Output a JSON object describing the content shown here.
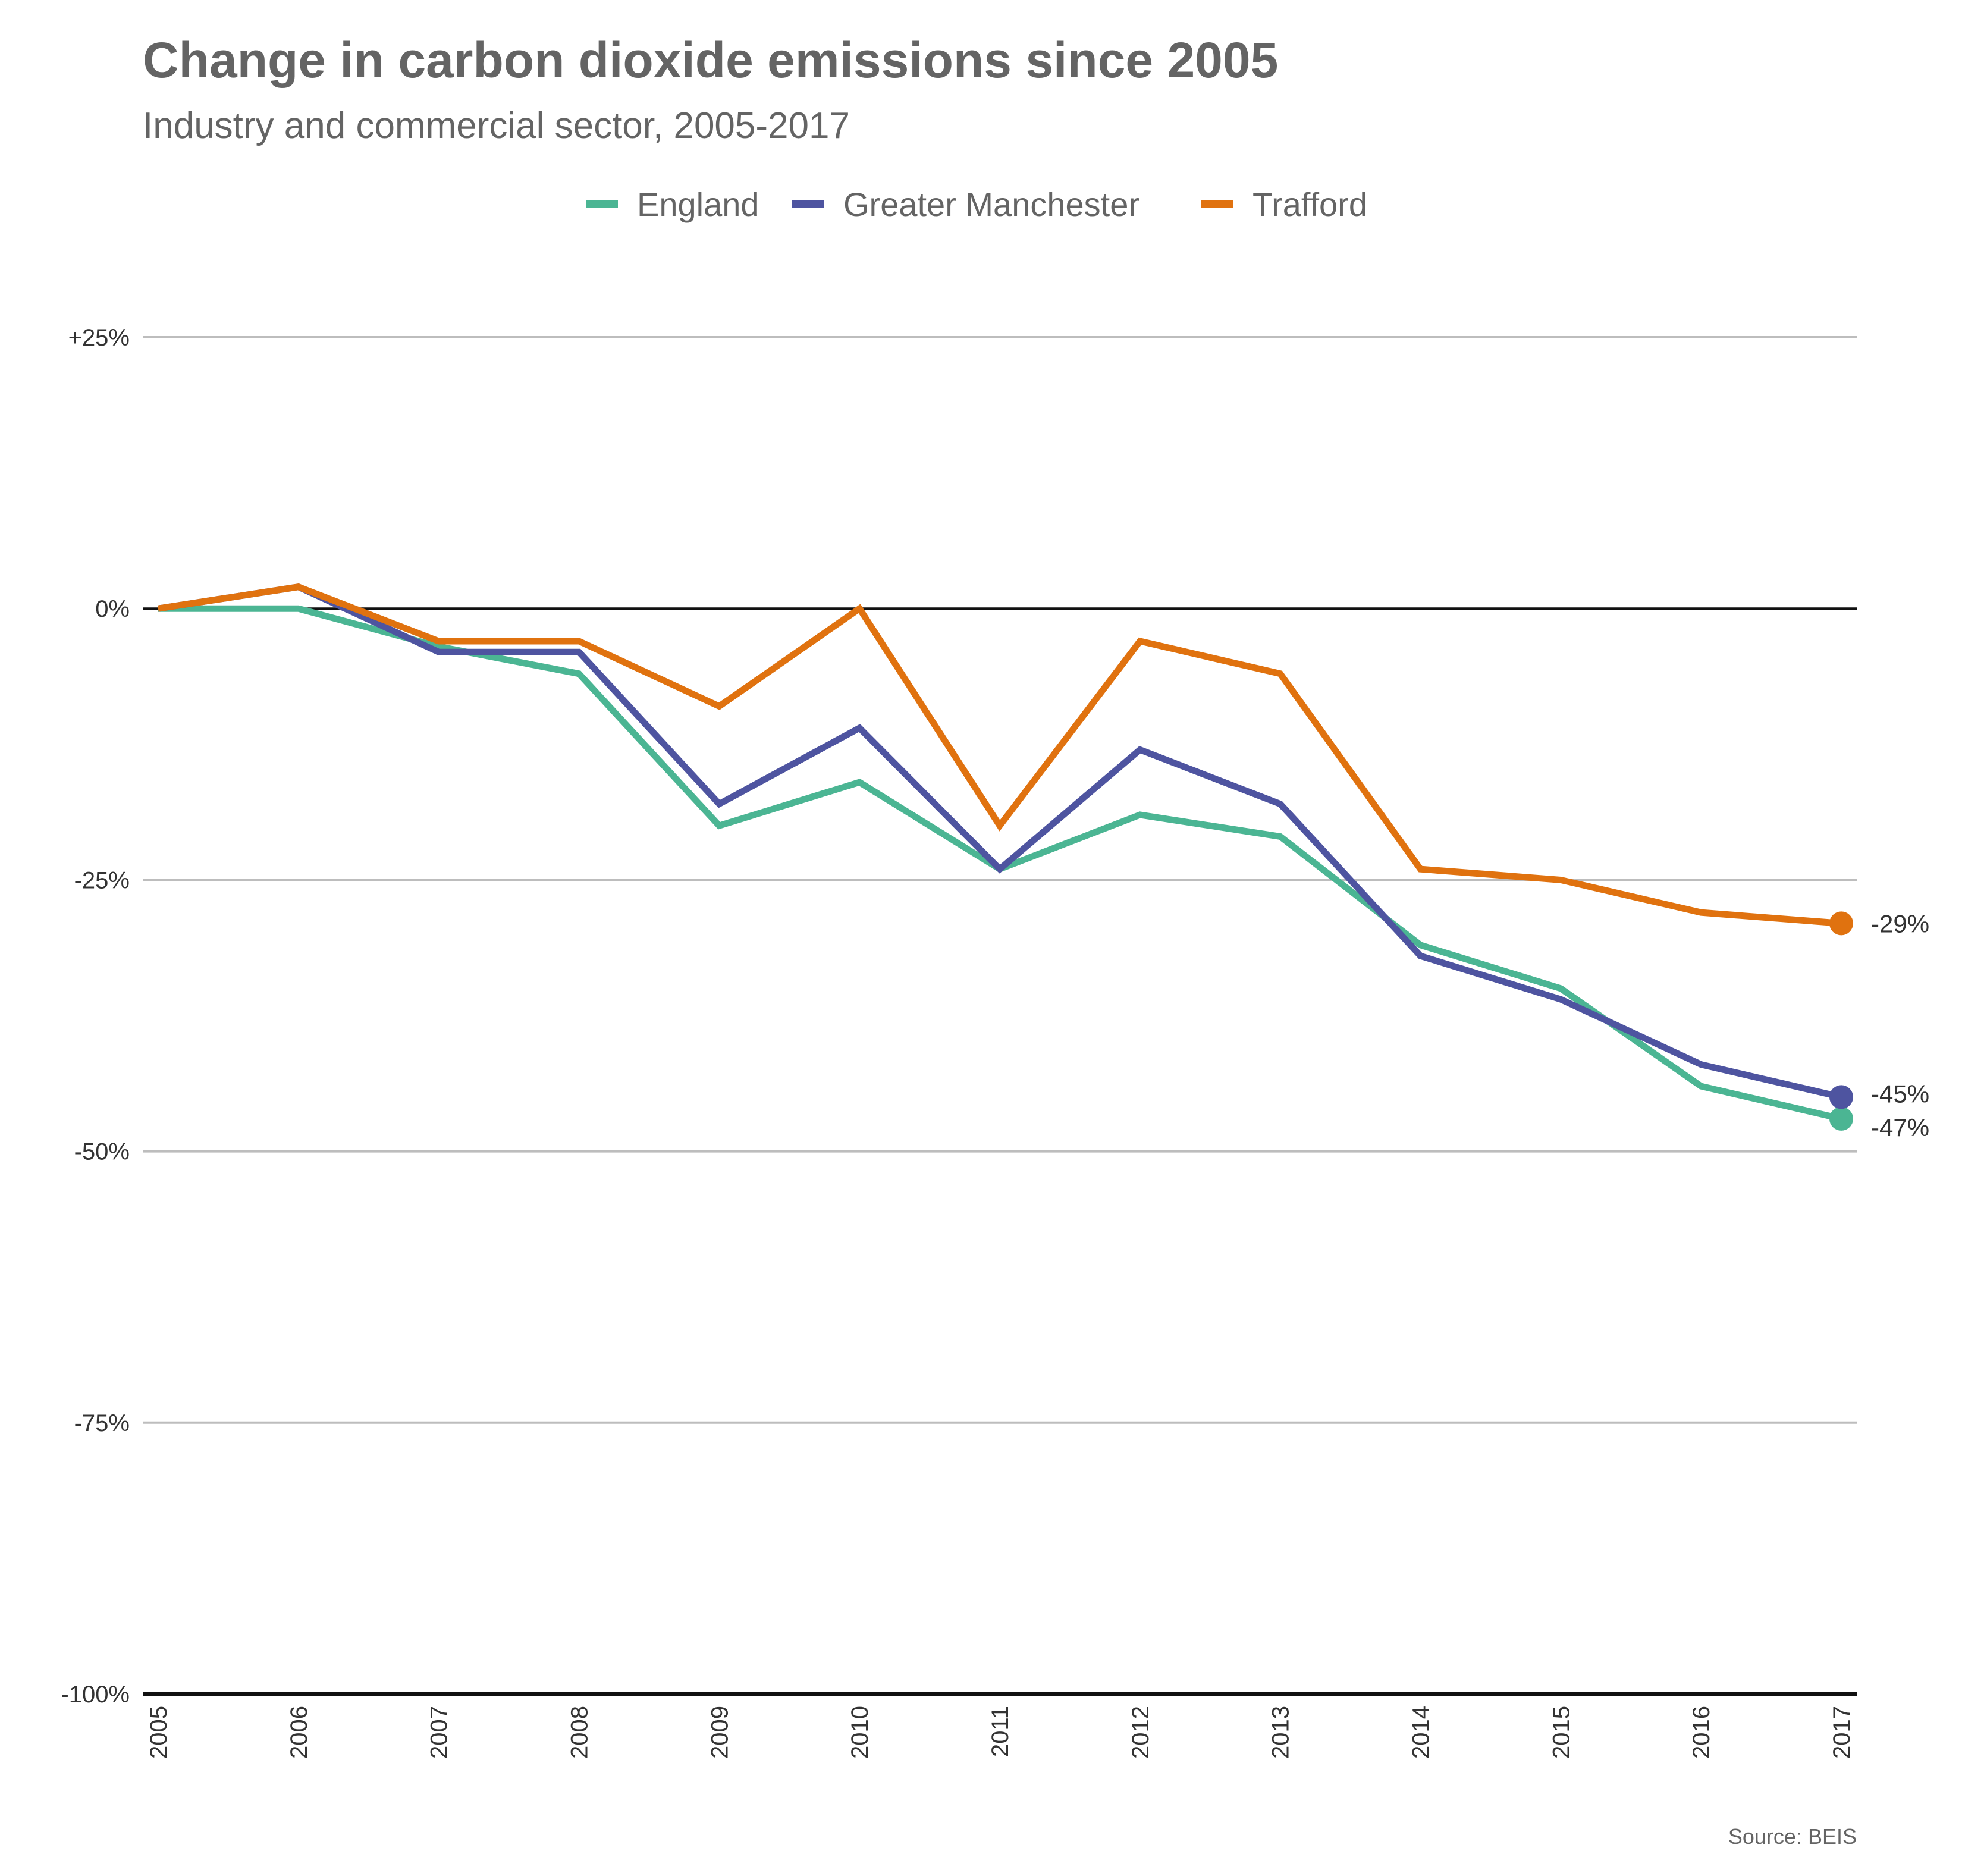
{
  "chart_data": {
    "type": "line",
    "title": "Change in carbon dioxide emissions since 2005",
    "subtitle": "Industry and commercial sector, 2005-2017",
    "source": "Source: BEIS",
    "x": [
      "2005",
      "2006",
      "2007",
      "2008",
      "2009",
      "2010",
      "2011",
      "2012",
      "2013",
      "2014",
      "2015",
      "2016",
      "2017"
    ],
    "ylim": [
      -100,
      25
    ],
    "yticks": [
      {
        "value": 25,
        "label": "+25%"
      },
      {
        "value": 0,
        "label": "0%"
      },
      {
        "value": -25,
        "label": "-25%"
      },
      {
        "value": -50,
        "label": "-50%"
      },
      {
        "value": -75,
        "label": "-75%"
      },
      {
        "value": -100,
        "label": "-100%"
      }
    ],
    "grid": true,
    "legend": "top-center",
    "series": [
      {
        "name": "England",
        "color": "#4bb593",
        "values": [
          0,
          0,
          -3.5,
          -6,
          -20,
          -16,
          -24,
          -19,
          -21,
          -31,
          -35,
          -44,
          -47
        ],
        "end_label": "-47%"
      },
      {
        "name": "Greater Manchester",
        "color": "#4e54a0",
        "values": [
          0,
          2,
          -4,
          -4,
          -18,
          -11,
          -24,
          -13,
          -18,
          -32,
          -36,
          -42,
          -45
        ],
        "end_label": "-45%"
      },
      {
        "name": "Trafford",
        "color": "#e0720f",
        "values": [
          0,
          2,
          -3,
          -3,
          -9,
          0,
          -20,
          -3,
          -6,
          -24,
          -25,
          -28,
          -29
        ],
        "end_label": "-29%"
      }
    ]
  }
}
